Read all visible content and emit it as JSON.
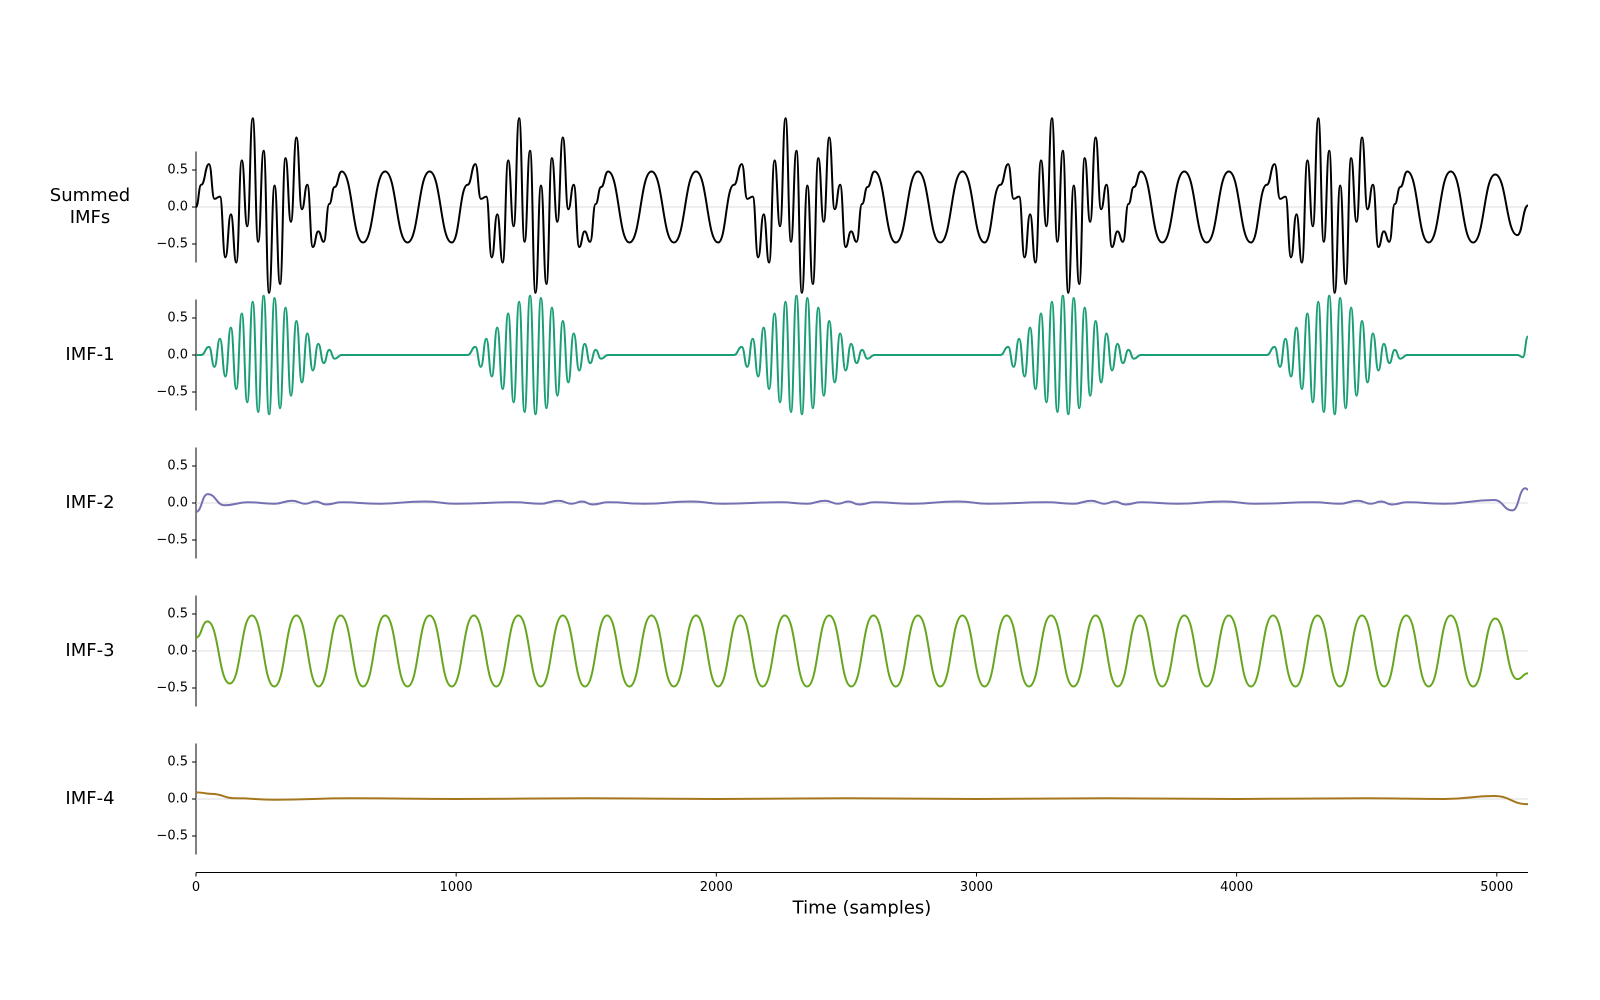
{
  "chart_data": [
    {
      "type": "line",
      "ylabel": "Summed\nIMFs",
      "color": "#000000",
      "xlim": [
        0,
        5120
      ],
      "ylim": [
        -0.75,
        0.75
      ],
      "yticks": [
        {
          "value": -0.5,
          "label": "−0.5"
        },
        {
          "value": 0,
          "label": "0.0"
        },
        0.5
      ],
      "zero_line": true,
      "x": [
        0,
        20,
        50,
        71,
        92,
        113,
        134,
        155,
        176,
        197,
        218,
        239,
        260,
        281,
        302,
        323,
        344,
        365,
        386,
        407,
        428,
        449,
        470,
        491,
        512,
        533,
        560,
        642,
        727,
        813,
        898,
        983,
        1044,
        1074,
        1095,
        1116,
        1137,
        1158,
        1179,
        1200,
        1221,
        1242,
        1263,
        1284,
        1305,
        1326,
        1347,
        1368,
        1389,
        1410,
        1431,
        1452,
        1473,
        1494,
        1515,
        1536,
        1557,
        1584,
        1666,
        1751,
        1837,
        1922,
        2007,
        2068,
        2098,
        2119,
        2140,
        2161,
        2182,
        2203,
        2224,
        2245,
        2266,
        2287,
        2308,
        2329,
        2350,
        2371,
        2392,
        2413,
        2434,
        2455,
        2476,
        2497,
        2518,
        2539,
        2560,
        2581,
        2608,
        2690,
        2775,
        2861,
        2946,
        3031,
        3092,
        3122,
        3143,
        3164,
        3185,
        3206,
        3227,
        3248,
        3269,
        3290,
        3311,
        3332,
        3353,
        3374,
        3395,
        3416,
        3437,
        3458,
        3479,
        3500,
        3521,
        3542,
        3563,
        3584,
        3605,
        3632,
        3714,
        3799,
        3885,
        3970,
        4055,
        4116,
        4146,
        4167,
        4188,
        4209,
        4230,
        4251,
        4272,
        4293,
        4314,
        4335,
        4356,
        4377,
        4398,
        4419,
        4440,
        4461,
        4482,
        4503,
        4524,
        4545,
        4566,
        4587,
        4608,
        4629,
        4656,
        4738,
        4823,
        4909,
        4994,
        5079,
        5120
      ],
      "values": [
        0,
        0.3,
        0.58,
        0.11,
        0.14,
        -0.68,
        -0.1,
        -0.75,
        0.63,
        -0.26,
        1.2,
        -0.47,
        0.76,
        -1.16,
        0.29,
        -1.04,
        0.66,
        -0.2,
        0.94,
        -0.03,
        0.3,
        -0.54,
        -0.33,
        -0.47,
        0.04,
        0.27,
        0.48,
        -0.48,
        0.48,
        -0.48,
        0.48,
        -0.48,
        0.3,
        0.58,
        0.11,
        0.14,
        -0.68,
        -0.1,
        -0.75,
        0.63,
        -0.26,
        1.2,
        -0.47,
        0.76,
        -1.16,
        0.29,
        -1.04,
        0.66,
        -0.2,
        0.94,
        -0.03,
        0.3,
        -0.54,
        -0.33,
        -0.47,
        0.04,
        0.27,
        0.48,
        -0.48,
        0.48,
        -0.48,
        0.48,
        -0.48,
        0.3,
        0.58,
        0.11,
        0.14,
        -0.68,
        -0.1,
        -0.75,
        0.63,
        -0.26,
        1.2,
        -0.47,
        0.76,
        -1.16,
        0.29,
        -1.04,
        0.66,
        -0.2,
        0.94,
        -0.03,
        0.3,
        -0.54,
        -0.33,
        -0.47,
        0.04,
        0.27,
        0.48,
        -0.48,
        0.48,
        -0.48,
        0.48,
        -0.48,
        0.3,
        0.58,
        0.11,
        0.14,
        -0.68,
        -0.1,
        -0.75,
        0.63,
        -0.26,
        1.2,
        -0.47,
        0.76,
        -1.16,
        0.29,
        -1.04,
        0.66,
        -0.2,
        0.94,
        -0.03,
        0.3,
        -0.54,
        -0.33,
        -0.47,
        0.04,
        0.27,
        0.48,
        -0.48,
        0.48,
        -0.48,
        0.48,
        -0.48,
        0.3,
        0.58,
        0.11,
        0.14,
        -0.68,
        -0.1,
        -0.75,
        0.63,
        -0.26,
        1.2,
        -0.47,
        0.76,
        -1.16,
        0.29,
        -1.04,
        0.66,
        -0.2,
        0.94,
        -0.03,
        0.3,
        -0.54,
        -0.33,
        -0.47,
        0.04,
        0.27,
        0.48,
        -0.48,
        0.48,
        -0.48,
        0.44,
        -0.38,
        0.02
      ]
    },
    {
      "type": "line",
      "ylabel": "IMF-1",
      "color": "#1b9e77",
      "xlim": [
        0,
        5120
      ],
      "ylim": [
        -0.75,
        0.75
      ],
      "yticks": [
        {
          "value": -0.5,
          "label": "−0.5"
        },
        {
          "value": 0,
          "label": "0.0"
        },
        0.5
      ],
      "zero_line": true,
      "x": [
        0,
        20,
        50,
        71,
        92,
        113,
        134,
        155,
        176,
        197,
        218,
        239,
        260,
        281,
        302,
        323,
        344,
        365,
        386,
        407,
        428,
        449,
        470,
        491,
        512,
        533,
        560,
        1044,
        1074,
        1095,
        1116,
        1137,
        1158,
        1179,
        1200,
        1221,
        1242,
        1263,
        1284,
        1305,
        1326,
        1347,
        1368,
        1389,
        1410,
        1431,
        1452,
        1473,
        1494,
        1515,
        1536,
        1557,
        1584,
        2068,
        2098,
        2119,
        2140,
        2161,
        2182,
        2203,
        2224,
        2245,
        2266,
        2287,
        2308,
        2329,
        2350,
        2371,
        2392,
        2413,
        2434,
        2455,
        2476,
        2497,
        2518,
        2539,
        2560,
        2581,
        2608,
        3092,
        3122,
        3143,
        3164,
        3185,
        3206,
        3227,
        3248,
        3269,
        3290,
        3311,
        3332,
        3353,
        3374,
        3395,
        3416,
        3437,
        3458,
        3479,
        3500,
        3521,
        3542,
        3563,
        3584,
        3605,
        3632,
        4116,
        4146,
        4167,
        4188,
        4209,
        4230,
        4251,
        4272,
        4293,
        4314,
        4335,
        4356,
        4377,
        4398,
        4419,
        4440,
        4461,
        4482,
        4503,
        4524,
        4545,
        4566,
        4587,
        4608,
        4629,
        4656,
        5080,
        5100,
        5120
      ],
      "values": [
        0,
        0,
        0.11,
        -0.16,
        0.22,
        -0.29,
        0.37,
        -0.46,
        0.56,
        -0.64,
        0.72,
        -0.77,
        0.8,
        -0.8,
        0.77,
        -0.72,
        0.64,
        -0.55,
        0.46,
        -0.37,
        0.29,
        -0.21,
        0.15,
        -0.11,
        0.07,
        -0.05,
        0,
        0,
        0.11,
        -0.16,
        0.22,
        -0.29,
        0.37,
        -0.46,
        0.56,
        -0.64,
        0.72,
        -0.77,
        0.8,
        -0.8,
        0.77,
        -0.72,
        0.64,
        -0.55,
        0.46,
        -0.37,
        0.29,
        -0.21,
        0.15,
        -0.11,
        0.07,
        -0.05,
        0,
        0,
        0.11,
        -0.16,
        0.22,
        -0.29,
        0.37,
        -0.46,
        0.56,
        -0.64,
        0.72,
        -0.77,
        0.8,
        -0.8,
        0.77,
        -0.72,
        0.64,
        -0.55,
        0.46,
        -0.37,
        0.29,
        -0.21,
        0.15,
        -0.11,
        0.07,
        -0.05,
        0,
        0,
        0.11,
        -0.16,
        0.22,
        -0.29,
        0.37,
        -0.46,
        0.56,
        -0.64,
        0.72,
        -0.77,
        0.8,
        -0.8,
        0.77,
        -0.72,
        0.64,
        -0.55,
        0.46,
        -0.37,
        0.29,
        -0.21,
        0.15,
        -0.11,
        0.07,
        -0.05,
        0,
        0,
        0.11,
        -0.16,
        0.22,
        -0.29,
        0.37,
        -0.46,
        0.56,
        -0.64,
        0.72,
        -0.77,
        0.8,
        -0.8,
        0.77,
        -0.72,
        0.64,
        -0.55,
        0.46,
        -0.37,
        0.29,
        -0.21,
        0.15,
        -0.11,
        0.07,
        -0.05,
        0,
        0,
        -0.03,
        0.25
      ]
    },
    {
      "type": "line",
      "ylabel": "IMF-2",
      "color": "#7570b3",
      "xlim": [
        0,
        5120
      ],
      "ylim": [
        -0.75,
        0.75
      ],
      "yticks": [
        {
          "value": -0.5,
          "label": "−0.5"
        },
        {
          "value": 0,
          "label": "0.0"
        },
        0.5
      ],
      "zero_line": true,
      "x": [
        0,
        45,
        110,
        200,
        300,
        370,
        420,
        460,
        500,
        560,
        700,
        880,
        1000,
        1224,
        1324,
        1394,
        1444,
        1484,
        1524,
        1584,
        1724,
        1904,
        2024,
        2248,
        2348,
        2418,
        2468,
        2508,
        2548,
        2608,
        2748,
        2928,
        3048,
        3272,
        3372,
        3442,
        3492,
        3532,
        3572,
        3632,
        3772,
        3952,
        4072,
        4296,
        4396,
        4466,
        4516,
        4556,
        4596,
        4656,
        4796,
        4990,
        5060,
        5110,
        5120
      ],
      "values": [
        -0.12,
        0.12,
        -0.03,
        0.01,
        -0.01,
        0.03,
        -0.01,
        0.02,
        -0.02,
        0.01,
        -0.01,
        0.02,
        -0.01,
        0.01,
        -0.01,
        0.03,
        -0.01,
        0.02,
        -0.02,
        0.01,
        -0.01,
        0.02,
        -0.01,
        0.01,
        -0.01,
        0.03,
        -0.01,
        0.02,
        -0.02,
        0.01,
        -0.01,
        0.02,
        -0.01,
        0.01,
        -0.01,
        0.03,
        -0.01,
        0.02,
        -0.02,
        0.01,
        -0.01,
        0.02,
        -0.01,
        0.01,
        -0.01,
        0.03,
        -0.01,
        0.02,
        -0.02,
        0.01,
        -0.01,
        0.04,
        -0.1,
        0.2,
        0.18
      ]
    },
    {
      "type": "line",
      "ylabel": "IMF-3",
      "color": "#66a61e",
      "xlim": [
        0,
        5120
      ],
      "ylim": [
        -0.75,
        0.75
      ],
      "yticks": [
        {
          "value": -0.5,
          "label": "−0.5"
        },
        {
          "value": 0,
          "label": "0.0"
        },
        0.5
      ],
      "zero_line": true,
      "x": [
        0,
        44,
        130,
        215,
        301,
        386,
        471,
        556,
        642,
        727,
        813,
        898,
        983,
        1068,
        1154,
        1239,
        1325,
        1410,
        1495,
        1580,
        1666,
        1751,
        1837,
        1922,
        2007,
        2092,
        2178,
        2263,
        2349,
        2434,
        2519,
        2604,
        2690,
        2775,
        2861,
        2946,
        3031,
        3116,
        3202,
        3287,
        3373,
        3458,
        3543,
        3628,
        3714,
        3799,
        3885,
        3970,
        4055,
        4140,
        4226,
        4311,
        4397,
        4482,
        4567,
        4652,
        4738,
        4823,
        4909,
        4994,
        5079,
        5120
      ],
      "values": [
        0.18,
        0.4,
        -0.44,
        0.48,
        -0.48,
        0.48,
        -0.48,
        0.48,
        -0.48,
        0.48,
        -0.48,
        0.48,
        -0.48,
        0.48,
        -0.48,
        0.48,
        -0.48,
        0.48,
        -0.48,
        0.48,
        -0.48,
        0.48,
        -0.48,
        0.48,
        -0.48,
        0.48,
        -0.48,
        0.48,
        -0.48,
        0.48,
        -0.48,
        0.48,
        -0.48,
        0.48,
        -0.48,
        0.48,
        -0.48,
        0.48,
        -0.48,
        0.48,
        -0.48,
        0.48,
        -0.48,
        0.48,
        -0.48,
        0.48,
        -0.48,
        0.48,
        -0.48,
        0.48,
        -0.48,
        0.48,
        -0.48,
        0.48,
        -0.48,
        0.48,
        -0.48,
        0.48,
        -0.48,
        0.44,
        -0.38,
        -0.3
      ]
    },
    {
      "type": "line",
      "ylabel": "IMF-4",
      "color": "#a6761d",
      "xlim": [
        0,
        5120
      ],
      "ylim": [
        -0.75,
        0.75
      ],
      "yticks": [
        {
          "value": -0.5,
          "label": "−0.5"
        },
        {
          "value": 0,
          "label": "0.0"
        },
        0.5
      ],
      "zero_line": true,
      "x": [
        0,
        60,
        150,
        300,
        600,
        1000,
        1500,
        2000,
        2500,
        3000,
        3500,
        4000,
        4500,
        4800,
        4990,
        5120
      ],
      "values": [
        0.09,
        0.07,
        0.01,
        -0.01,
        0.01,
        0,
        0.01,
        0,
        0.01,
        0,
        0.01,
        0,
        0.01,
        0,
        0.04,
        -0.07
      ],
      "xlabel": "Time (samples)",
      "xticks": [
        0,
        1000,
        2000,
        3000,
        4000,
        5000
      ]
    }
  ]
}
